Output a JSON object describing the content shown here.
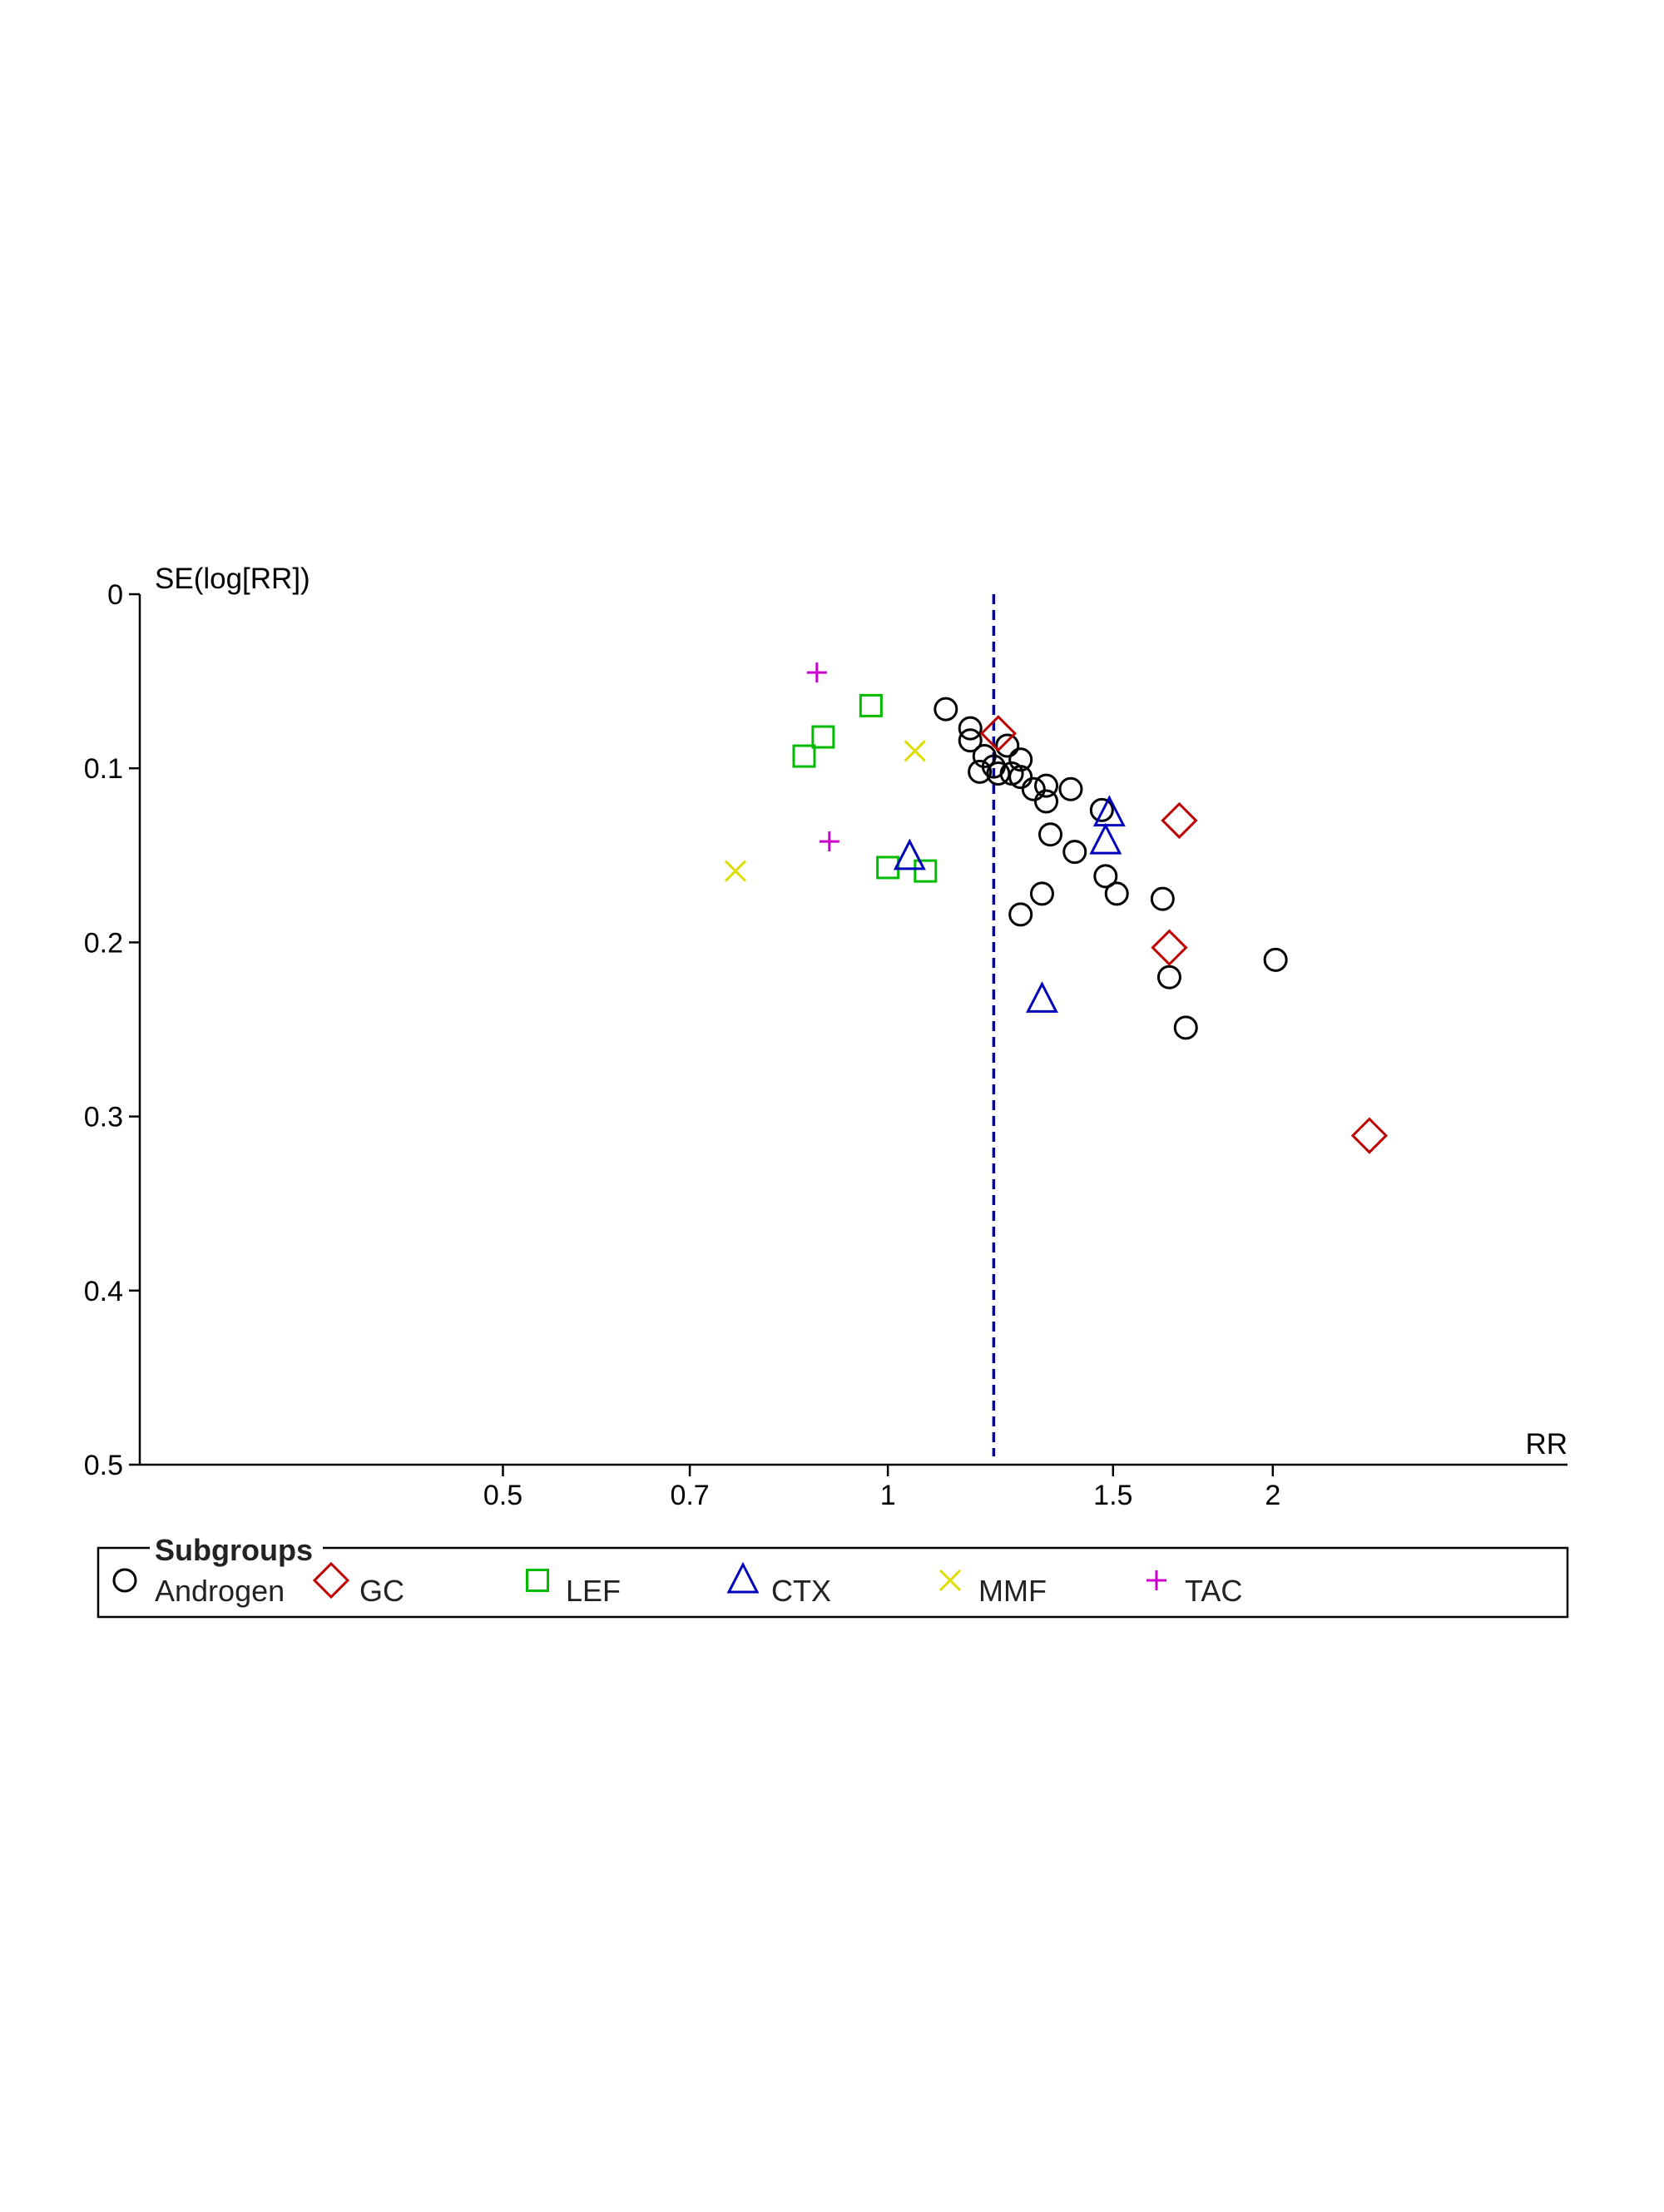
{
  "chart_data": {
    "type": "scatter",
    "title": "",
    "xlabel": "RR",
    "ylabel": "SE(log[RR])",
    "x_scale": "log",
    "x_ticks": [
      0.5,
      0.7,
      1,
      1.5,
      2
    ],
    "x_tick_labels": [
      "0.5",
      "0.7",
      "1",
      "1.5",
      "2"
    ],
    "xlim": [
      0.26,
      3.4
    ],
    "y_ticks": [
      0,
      0.1,
      0.2,
      0.3,
      0.4,
      0.5
    ],
    "y_tick_labels": [
      "0",
      "0.1",
      "0.2",
      "0.3",
      "0.4",
      "0.5"
    ],
    "ylim": [
      0,
      0.5
    ],
    "y_inverted": true,
    "grid": false,
    "reference_line": {
      "x": 1.21,
      "style": "dashed",
      "color": "#0000aa"
    },
    "legend": {
      "title": "Subgroups",
      "placement": "bottom"
    },
    "series": [
      {
        "name": "Androgen",
        "marker": "circle",
        "color": "#000000",
        "points": [
          [
            1.11,
            0.066
          ],
          [
            1.16,
            0.077
          ],
          [
            1.16,
            0.084
          ],
          [
            1.19,
            0.093
          ],
          [
            1.21,
            0.099
          ],
          [
            1.24,
            0.087
          ],
          [
            1.27,
            0.095
          ],
          [
            1.22,
            0.103
          ],
          [
            1.25,
            0.103
          ],
          [
            1.18,
            0.102
          ],
          [
            1.27,
            0.105
          ],
          [
            1.3,
            0.112
          ],
          [
            1.33,
            0.11
          ],
          [
            1.39,
            0.112
          ],
          [
            1.33,
            0.119
          ],
          [
            1.47,
            0.124
          ],
          [
            1.34,
            0.138
          ],
          [
            1.4,
            0.148
          ],
          [
            1.48,
            0.162
          ],
          [
            1.51,
            0.172
          ],
          [
            1.32,
            0.172
          ],
          [
            1.27,
            0.184
          ],
          [
            1.64,
            0.175
          ],
          [
            1.66,
            0.22
          ],
          [
            1.71,
            0.249
          ],
          [
            2.01,
            0.21
          ]
        ]
      },
      {
        "name": "GC",
        "marker": "diamond",
        "color": "#c00000",
        "points": [
          [
            1.22,
            0.08
          ],
          [
            1.69,
            0.13
          ],
          [
            1.66,
            0.203
          ],
          [
            2.38,
            0.311
          ]
        ]
      },
      {
        "name": "LEF",
        "marker": "square",
        "color": "#00bb00",
        "points": [
          [
            0.97,
            0.064
          ],
          [
            0.89,
            0.082
          ],
          [
            0.86,
            0.093
          ],
          [
            1.0,
            0.157
          ],
          [
            1.07,
            0.159
          ]
        ]
      },
      {
        "name": "CTX",
        "marker": "triangle",
        "color": "#0000bb",
        "points": [
          [
            1.49,
            0.126
          ],
          [
            1.48,
            0.142
          ],
          [
            1.04,
            0.151
          ],
          [
            1.32,
            0.233
          ]
        ]
      },
      {
        "name": "MMF",
        "marker": "x",
        "color": "#dddd00",
        "points": [
          [
            1.05,
            0.09
          ],
          [
            0.76,
            0.159
          ]
        ]
      },
      {
        "name": "TAC",
        "marker": "plus",
        "color": "#cc00cc",
        "points": [
          [
            0.88,
            0.045
          ],
          [
            0.9,
            0.142
          ]
        ]
      }
    ]
  }
}
